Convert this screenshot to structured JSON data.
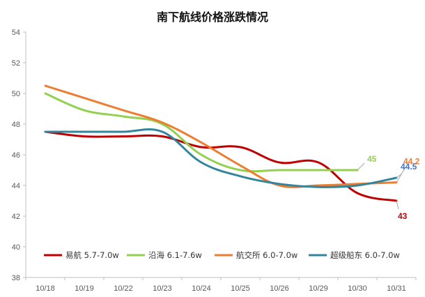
{
  "chart_data": {
    "type": "line",
    "title": "南下航线价格涨跌情况",
    "categories": [
      "10/18",
      "10/19",
      "10/22",
      "10/23",
      "10/24",
      "10/25",
      "10/26",
      "10/29",
      "10/30",
      "10/31"
    ],
    "ylim": [
      38,
      54
    ],
    "yticks": [
      "38",
      "40",
      "42",
      "44",
      "46",
      "48",
      "50",
      "52",
      "54"
    ],
    "grid": false,
    "legend_position": "bottom-inside",
    "series": [
      {
        "name": "易航 5.7-7.0w",
        "color": "#C00000",
        "values": [
          47.5,
          47.2,
          47.2,
          47.2,
          46.5,
          46.5,
          45.5,
          45.5,
          43.5,
          43.0
        ],
        "end_label": "43",
        "end_label_color": "#C00000"
      },
      {
        "name": "沿海 6.1-7.6w",
        "color": "#92D050",
        "values": [
          50.0,
          48.9,
          48.5,
          48.0,
          46.0,
          45.0,
          45.0,
          45.0,
          45.0,
          null
        ],
        "end_label": "45",
        "end_label_color": "#92D050"
      },
      {
        "name": "航交所 6.0-7.0w",
        "color": "#ED7D31",
        "values": [
          50.5,
          49.7,
          48.9,
          48.1,
          46.8,
          45.3,
          44.0,
          44.0,
          44.1,
          44.2
        ],
        "end_label": "44.2",
        "end_label_color": "#ED7D31"
      },
      {
        "name": "超级船东 6.0-7.0w",
        "color": "#31859C",
        "values": [
          47.5,
          47.5,
          47.5,
          47.5,
          45.5,
          44.6,
          44.1,
          43.9,
          44.0,
          44.5
        ],
        "end_label": "44.5",
        "end_label_color": "#4472C4"
      }
    ]
  }
}
